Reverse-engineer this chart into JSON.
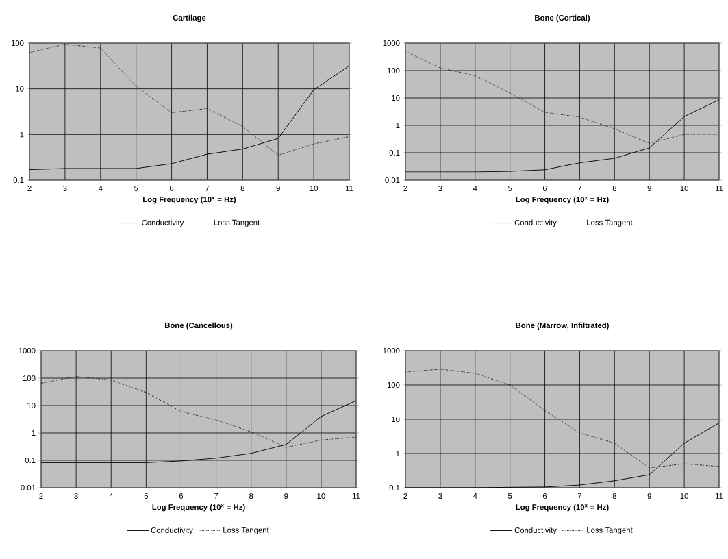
{
  "chart_data": [
    {
      "type": "line",
      "title": "Cartilage",
      "xlabel": "Log Frequency (10$^{x}$ = Hz)",
      "x": [
        2,
        3,
        4,
        5,
        6,
        7,
        8,
        9,
        10,
        11
      ],
      "xlim": [
        2,
        11
      ],
      "xticks": [
        2,
        3,
        4,
        5,
        6,
        7,
        8,
        9,
        10,
        11
      ],
      "log": "y",
      "ylim": [
        0.1,
        100
      ],
      "yticks": [
        0.1,
        1,
        10,
        100
      ],
      "grid": true,
      "legend": "bottom",
      "marker": "none",
      "series": [
        {
          "name": "Conductivity",
          "color": "#000000",
          "line_style": "solid",
          "values": [
            0.17,
            0.18,
            0.18,
            0.18,
            0.23,
            0.37,
            0.48,
            0.82,
            9.5,
            32
          ]
        },
        {
          "name": "Loss Tangent",
          "color": "#000000",
          "line_style": "dotted",
          "values": [
            62,
            95,
            78,
            11.5,
            3,
            3.7,
            1.5,
            0.35,
            0.62,
            0.9
          ]
        }
      ]
    },
    {
      "type": "line",
      "title": "Bone (Cortical)",
      "xlabel": "Log Frequency (10$^{x}$ = Hz)",
      "x": [
        2,
        3,
        4,
        5,
        6,
        7,
        8,
        9,
        10,
        11
      ],
      "xlim": [
        2,
        11
      ],
      "xticks": [
        2,
        3,
        4,
        5,
        6,
        7,
        8,
        9,
        10,
        11
      ],
      "log": "y",
      "ylim": [
        0.01,
        1000
      ],
      "yticks": [
        0.01,
        0.1,
        1,
        10,
        100,
        1000
      ],
      "grid": true,
      "legend": "bottom",
      "marker": "none",
      "series": [
        {
          "name": "Conductivity",
          "color": "#000000",
          "line_style": "solid",
          "values": [
            0.02,
            0.02,
            0.02,
            0.021,
            0.024,
            0.043,
            0.063,
            0.15,
            2.1,
            8.5
          ]
        },
        {
          "name": "Loss Tangent",
          "color": "#000000",
          "line_style": "dotted",
          "values": [
            500,
            125,
            65,
            15,
            3,
            2,
            0.75,
            0.22,
            0.47,
            0.47
          ]
        }
      ]
    },
    {
      "type": "line",
      "title": "Bone (Cancellous)",
      "xlabel": "Log Frequency (10$^{x}$ = Hz)",
      "x": [
        2,
        3,
        4,
        5,
        6,
        7,
        8,
        9,
        10,
        11
      ],
      "xlim": [
        2,
        11
      ],
      "xticks": [
        2,
        3,
        4,
        5,
        6,
        7,
        8,
        9,
        10,
        11
      ],
      "log": "y",
      "ylim": [
        0.01,
        1000
      ],
      "yticks": [
        0.01,
        0.1,
        1,
        10,
        100,
        1000
      ],
      "grid": true,
      "legend": "bottom",
      "marker": "none",
      "series": [
        {
          "name": "Conductivity",
          "color": "#000000",
          "line_style": "solid",
          "values": [
            0.082,
            0.082,
            0.082,
            0.082,
            0.095,
            0.12,
            0.18,
            0.38,
            4,
            15
          ]
        },
        {
          "name": "Loss Tangent",
          "color": "#000000",
          "line_style": "dotted",
          "values": [
            65,
            115,
            85,
            30,
            6,
            3,
            1.1,
            0.3,
            0.55,
            0.7
          ]
        }
      ]
    },
    {
      "type": "line",
      "title": "Bone (Marrow, Infiltrated)",
      "xlabel": "Log Frequency (10$^{x}$ = Hz)",
      "x": [
        2,
        3,
        4,
        5,
        6,
        7,
        8,
        9,
        10,
        11
      ],
      "xlim": [
        2,
        11
      ],
      "xticks": [
        2,
        3,
        4,
        5,
        6,
        7,
        8,
        9,
        10,
        11
      ],
      "log": "y",
      "ylim": [
        0.1,
        1000
      ],
      "yticks": [
        0.1,
        1,
        10,
        100,
        1000
      ],
      "grid": true,
      "legend": "bottom",
      "marker": "none",
      "series": [
        {
          "name": "Conductivity",
          "color": "#000000",
          "line_style": "solid",
          "values": [
            0.1,
            0.1,
            0.1,
            0.103,
            0.105,
            0.12,
            0.16,
            0.24,
            2,
            7.8
          ]
        },
        {
          "name": "Loss Tangent",
          "color": "#000000",
          "line_style": "dotted",
          "values": [
            240,
            290,
            220,
            100,
            18,
            4,
            2,
            0.38,
            0.5,
            0.42
          ]
        }
      ]
    }
  ]
}
